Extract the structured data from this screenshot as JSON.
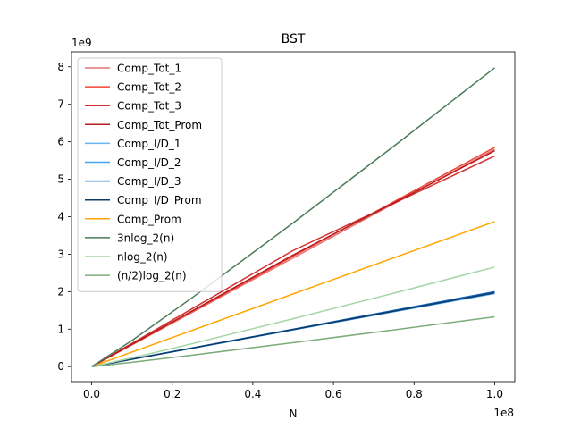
{
  "chart_data": {
    "type": "line",
    "title": "BST",
    "xlabel": "N",
    "ylabel": "",
    "x_offset_label": "1e8",
    "y_offset_label": "1e9",
    "x_scale": 100000000,
    "y_scale": 1000000000,
    "xlim": [
      -5000000,
      105000000
    ],
    "ylim": [
      -400000000,
      8400000000
    ],
    "x_ticks": [
      0,
      20000000,
      40000000,
      60000000,
      80000000,
      100000000
    ],
    "x_tick_labels": [
      "0.0",
      "0.2",
      "0.4",
      "0.6",
      "0.8",
      "1.0"
    ],
    "y_ticks": [
      0,
      1000000000,
      2000000000,
      3000000000,
      4000000000,
      5000000000,
      6000000000,
      7000000000,
      8000000000
    ],
    "y_tick_labels": [
      "0",
      "1",
      "2",
      "3",
      "4",
      "5",
      "6",
      "7",
      "8"
    ],
    "grid": false,
    "legend_position": "top-left",
    "series": [
      {
        "name": "Comp_Tot_1",
        "color": "#e57373",
        "x": [
          0,
          50000000,
          100000000
        ],
        "y": [
          0,
          2900000000,
          5800000000
        ]
      },
      {
        "name": "Comp_Tot_2",
        "color": "#f44336",
        "x": [
          0,
          50000000,
          100000000
        ],
        "y": [
          0,
          2950000000,
          5850000000
        ]
      },
      {
        "name": "Comp_Tot_3",
        "color": "#d32f2f",
        "x": [
          0,
          50000000,
          100000000
        ],
        "y": [
          0,
          3100000000,
          5620000000
        ]
      },
      {
        "name": "Comp_Tot_Prom",
        "color": "#b71c1c",
        "x": [
          0,
          50000000,
          100000000
        ],
        "y": [
          0,
          2980000000,
          5760000000
        ]
      },
      {
        "name": "Comp_I/D_1",
        "color": "#64b5f6",
        "x": [
          0,
          50000000,
          100000000
        ],
        "y": [
          0,
          980000000,
          1950000000
        ]
      },
      {
        "name": "Comp_I/D_2",
        "color": "#42a5f5",
        "x": [
          0,
          50000000,
          100000000
        ],
        "y": [
          0,
          990000000,
          1960000000
        ]
      },
      {
        "name": "Comp_I/D_3",
        "color": "#1565c0",
        "x": [
          0,
          50000000,
          100000000
        ],
        "y": [
          0,
          1000000000,
          2000000000
        ]
      },
      {
        "name": "Comp_I/D_Prom",
        "color": "#0d3b66",
        "x": [
          0,
          50000000,
          100000000
        ],
        "y": [
          0,
          990000000,
          1970000000
        ]
      },
      {
        "name": "Comp_Prom",
        "color": "#ffa500",
        "x": [
          0,
          50000000,
          100000000
        ],
        "y": [
          0,
          1940000000,
          3870000000
        ]
      },
      {
        "name": "3nlog_2(n)",
        "color": "#4a7c59",
        "x": [
          0,
          10000000,
          25000000,
          50000000,
          75000000,
          100000000
        ],
        "y": [
          0,
          697600000,
          1843000000,
          3836000000,
          5884000000,
          7972000000
        ]
      },
      {
        "name": "nlog_2(n)",
        "color": "#a5d6a7",
        "x": [
          0,
          10000000,
          25000000,
          50000000,
          75000000,
          100000000
        ],
        "y": [
          0,
          232500000,
          614300000,
          1279000000,
          1961000000,
          2657000000
        ]
      },
      {
        "name": "(n/2)log_2(n)",
        "color": "#7cab7c",
        "x": [
          0,
          10000000,
          25000000,
          50000000,
          75000000,
          100000000
        ],
        "y": [
          0,
          116300000,
          307100000,
          639400000,
          980600000,
          1329000000
        ]
      }
    ]
  }
}
